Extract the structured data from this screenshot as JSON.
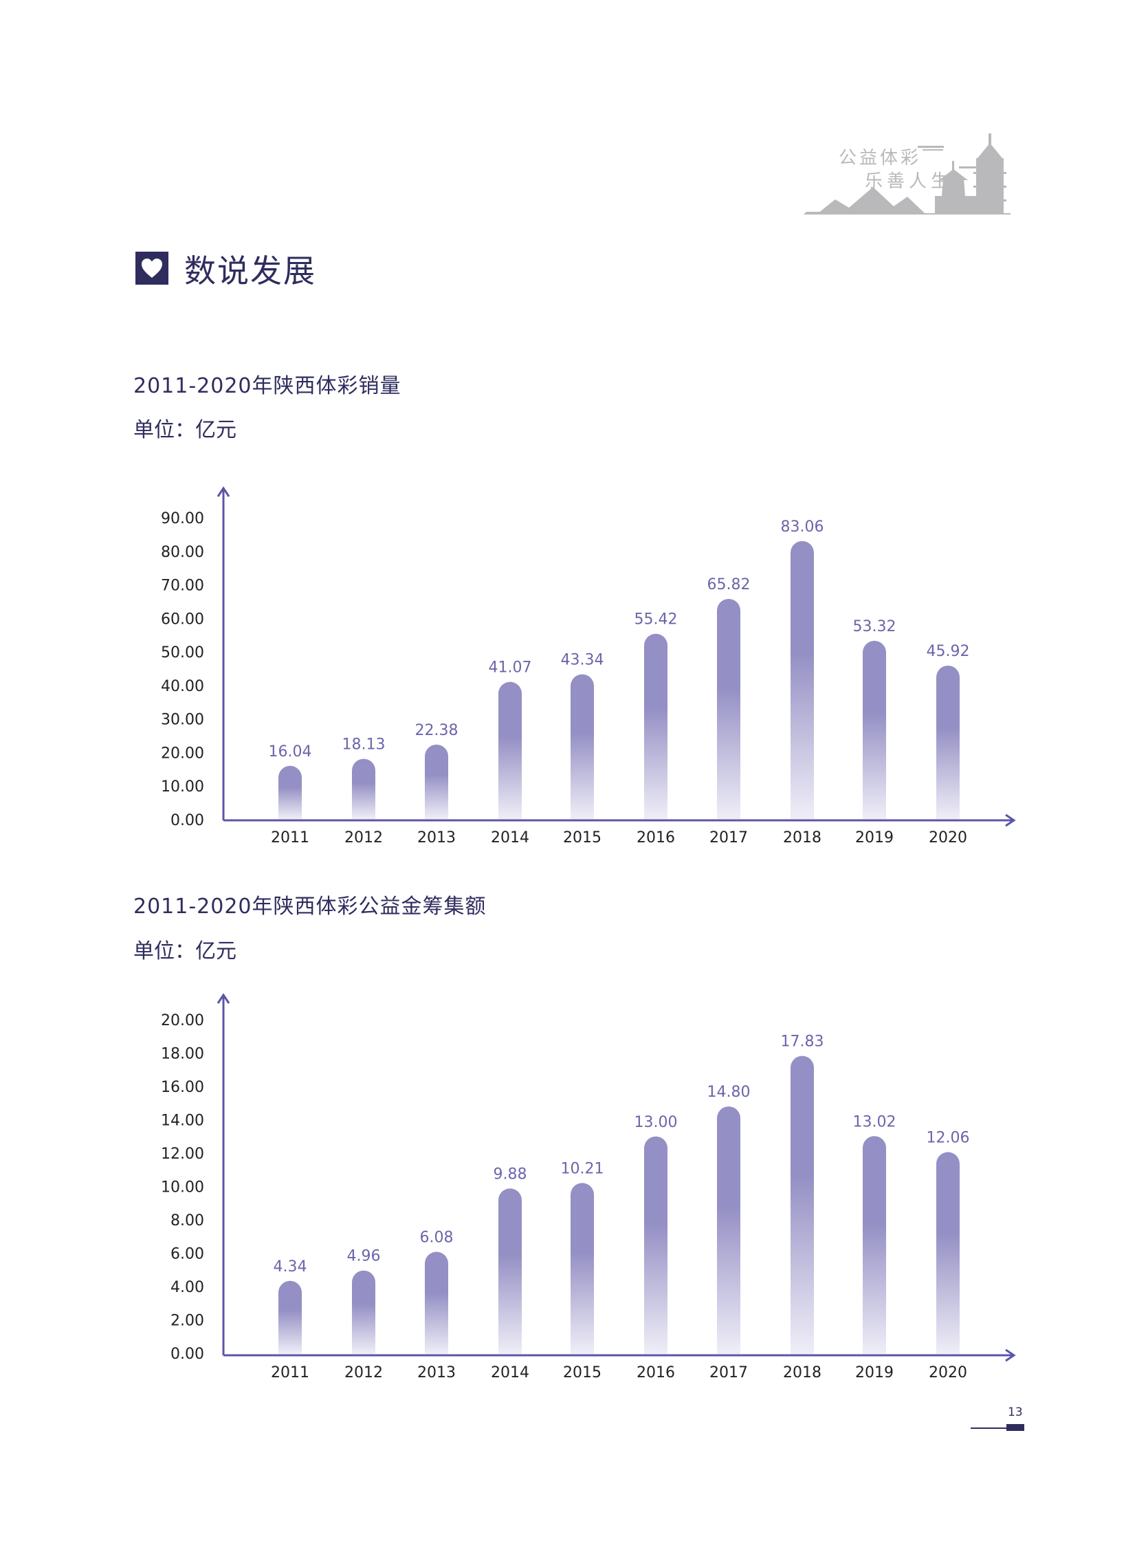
{
  "logo": {
    "line1": "公益体彩",
    "line2": "乐善人生"
  },
  "section": {
    "title": "数说发展"
  },
  "page_number": "13",
  "colors": {
    "primary": "#2f2d5e",
    "axis": "#5b55a8",
    "bar_top": "#948fc4",
    "bar_bottom": "#efeef7",
    "label": "#6a65aa",
    "logo_gray": "#b9b9bc"
  },
  "chart_data": [
    {
      "type": "bar",
      "title": "2011-2020年陕西体彩销量",
      "unit_label": "单位：亿元",
      "categories": [
        "2011",
        "2012",
        "2013",
        "2014",
        "2015",
        "2016",
        "2017",
        "2018",
        "2019",
        "2020"
      ],
      "values": [
        16.04,
        18.13,
        22.38,
        41.07,
        43.34,
        55.42,
        65.82,
        83.06,
        53.32,
        45.92
      ],
      "value_labels": [
        "16.04",
        "18.13",
        "22.38",
        "41.07",
        "43.34",
        "55.42",
        "65.82",
        "83.06",
        "53.32",
        "45.92"
      ],
      "yticks": [
        "0.00",
        "10.00",
        "20.00",
        "30.00",
        "40.00",
        "50.00",
        "60.00",
        "70.00",
        "80.00",
        "90.00"
      ],
      "ylim": [
        0,
        90
      ],
      "ystep": 10,
      "xlabel": "",
      "ylabel": "",
      "grid": false
    },
    {
      "type": "bar",
      "title": "2011-2020年陕西体彩公益金筹集额",
      "unit_label": "单位：亿元",
      "categories": [
        "2011",
        "2012",
        "2013",
        "2014",
        "2015",
        "2016",
        "2017",
        "2018",
        "2019",
        "2020"
      ],
      "values": [
        4.34,
        4.96,
        6.08,
        9.88,
        10.21,
        13.0,
        14.8,
        17.83,
        13.02,
        12.06
      ],
      "value_labels": [
        "4.34",
        "4.96",
        "6.08",
        "9.88",
        "10.21",
        "13.00",
        "14.80",
        "17.83",
        "13.02",
        "12.06"
      ],
      "yticks": [
        "0.00",
        "2.00",
        "4.00",
        "6.00",
        "8.00",
        "10.00",
        "12.00",
        "14.00",
        "16.00",
        "18.00",
        "20.00"
      ],
      "ylim": [
        0,
        20
      ],
      "ystep": 2,
      "xlabel": "",
      "ylabel": "",
      "grid": false
    }
  ]
}
